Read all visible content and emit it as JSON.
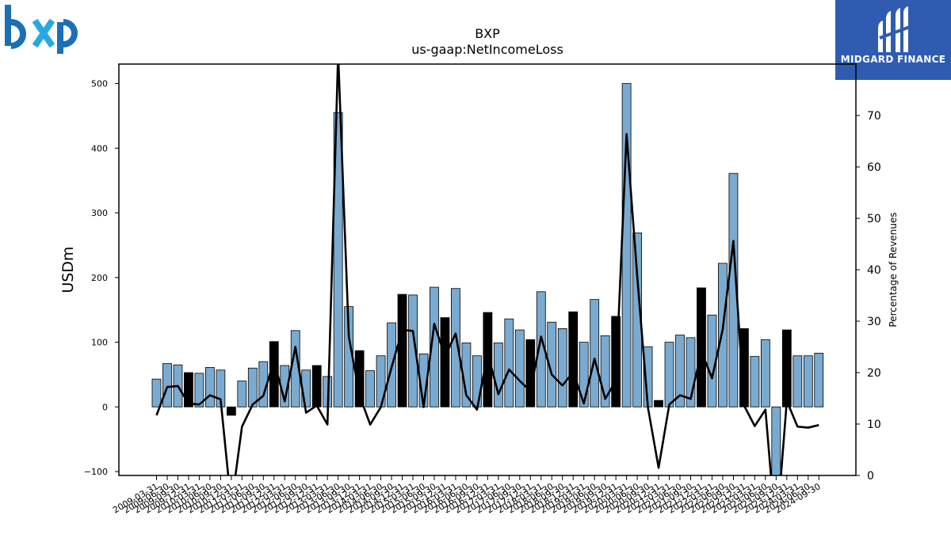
{
  "brand": {
    "ticker_logo_text": "bxp",
    "partner_logo_text": "MIDGARD FINANCE"
  },
  "chart_data": {
    "type": "bar",
    "title": "BXP",
    "subtitle": "us-gaap:NetIncomeLoss",
    "ylabel": "USDm",
    "y2label": "Percentage of Revenues",
    "ylim": [
      -106,
      530
    ],
    "y2lim": [
      0,
      80
    ],
    "yticks": [
      -100,
      0,
      100,
      200,
      300,
      400,
      500
    ],
    "y2ticks": [
      0,
      10,
      20,
      30,
      40,
      50,
      60,
      70
    ],
    "grid": false,
    "colors": {
      "bar": "#7aaad0",
      "bar_highlight": "#000000",
      "line": "#000000"
    },
    "categories": [
      "2009-03-31",
      "2009-06-30",
      "2009-09-30",
      "2009-12-31",
      "2010-03-31",
      "2010-06-30",
      "2010-09-30",
      "2010-12-31",
      "2011-03-31",
      "2011-06-30",
      "2011-09-30",
      "2011-12-31",
      "2012-03-31",
      "2012-06-30",
      "2012-09-30",
      "2012-12-31",
      "2013-03-31",
      "2013-06-30",
      "2013-09-30",
      "2013-12-31",
      "2014-03-31",
      "2014-06-30",
      "2014-09-30",
      "2014-12-31",
      "2015-03-31",
      "2015-06-30",
      "2015-09-30",
      "2015-12-31",
      "2016-03-31",
      "2016-06-30",
      "2016-09-30",
      "2016-12-31",
      "2017-03-31",
      "2017-06-30",
      "2017-09-30",
      "2017-12-31",
      "2018-03-31",
      "2018-06-30",
      "2018-09-30",
      "2018-12-31",
      "2019-03-31",
      "2019-06-30",
      "2019-09-30",
      "2019-12-31",
      "2020-03-31",
      "2020-06-30",
      "2020-09-30",
      "2020-12-31",
      "2021-03-31",
      "2021-06-30",
      "2021-09-30",
      "2021-12-31",
      "2022-03-31",
      "2022-06-30",
      "2022-09-30",
      "2022-12-31",
      "2023-03-31",
      "2023-06-30",
      "2023-09-30",
      "2023-12-31",
      "2024-03-31",
      "2024-06-30",
      "2024-09-30"
    ],
    "xtick_labels": [
      "2009-03-31",
      "2009-06-30",
      "2009-09-30",
      "2009-12-31",
      "2010-03-31",
      "2010-06-30",
      "2010-09-30",
      "2010-12-31",
      "2011-03-31",
      "2011-06-30",
      "2011-09-30",
      "2011-12-31",
      "2012-03-31",
      "2012-06-30",
      "2012-09-30",
      "2012-12-31",
      "2013-03-31",
      "2013-06-30",
      "2013-09-30",
      "2013-12-31",
      "2014-03-31",
      "2014-06-30",
      "2014-09-30",
      "2014-12-31",
      "2015-03-31",
      "2015-06-30",
      "2015-09-30",
      "2015-12-31",
      "2016-03-31",
      "2016-06-30",
      "2016-09-30",
      "2016-12-31",
      "2017-03-31",
      "2017-06-30",
      "2017-09-30",
      "2017-12-31",
      "2018-03-31",
      "2018-06-30",
      "2018-09-30",
      "2018-12-31",
      "2019-03-31",
      "2019-06-30",
      "2019-09-30",
      "2019-12-31",
      "2020-03-31",
      "2020-06-30",
      "2020-09-30",
      "2020-12-31",
      "2021-03-31",
      "2021-06-30",
      "2021-09-30",
      "2021-12-31",
      "2022-03-31",
      "2022-06-30",
      "2022-09-30",
      "2022-12-31",
      "2023-03-31",
      "2023-06-30",
      "2023-09-30",
      "2023-12-31",
      "2024-03-31",
      "2024-06-30",
      "2024-09-30"
    ],
    "series": [
      {
        "axis": "left",
        "kind": "bar",
        "values": [
          43,
          67,
          65,
          53,
          52,
          61,
          57,
          -13,
          40,
          60,
          70,
          101,
          64,
          118,
          57,
          64,
          47,
          455,
          155,
          87,
          56,
          79,
          130,
          174,
          173,
          82,
          185,
          138,
          183,
          99,
          79,
          146,
          99,
          136,
          119,
          104,
          178,
          131,
          121,
          147,
          100,
          166,
          110,
          140,
          500,
          269,
          93,
          10,
          100,
          111,
          107,
          184,
          142,
          222,
          361,
          121,
          78,
          104,
          -111,
          119,
          79,
          79,
          83
        ],
        "highlight": [
          false,
          false,
          false,
          true,
          false,
          false,
          false,
          true,
          false,
          false,
          false,
          true,
          false,
          false,
          false,
          true,
          false,
          false,
          false,
          true,
          false,
          false,
          false,
          true,
          false,
          false,
          false,
          true,
          false,
          false,
          false,
          true,
          false,
          false,
          false,
          true,
          false,
          false,
          false,
          true,
          false,
          false,
          false,
          true,
          false,
          false,
          false,
          true,
          false,
          false,
          false,
          true,
          false,
          false,
          false,
          true,
          false,
          false,
          false,
          true,
          false,
          false,
          false
        ]
      },
      {
        "axis": "right",
        "kind": "line",
        "values": [
          11.7,
          17.2,
          17.4,
          14.0,
          13.8,
          15.6,
          14.8,
          -6.0,
          9.5,
          13.8,
          15.5,
          22.3,
          14.4,
          25.0,
          12.2,
          13.6,
          9.9,
          82.0,
          27.0,
          15.6,
          9.9,
          13.3,
          21.0,
          28.3,
          28.1,
          13.3,
          29.5,
          23.1,
          27.6,
          15.6,
          12.8,
          23.8,
          15.8,
          20.6,
          18.4,
          16.4,
          27.0,
          19.6,
          17.5,
          20.1,
          14.0,
          22.7,
          14.9,
          18.4,
          66.4,
          38.7,
          13.2,
          1.5,
          13.8,
          15.6,
          14.9,
          24.1,
          18.9,
          28.4,
          45.6,
          13.6,
          9.6,
          12.8,
          -12.0,
          14.5,
          9.5,
          9.3,
          9.8
        ]
      }
    ]
  }
}
